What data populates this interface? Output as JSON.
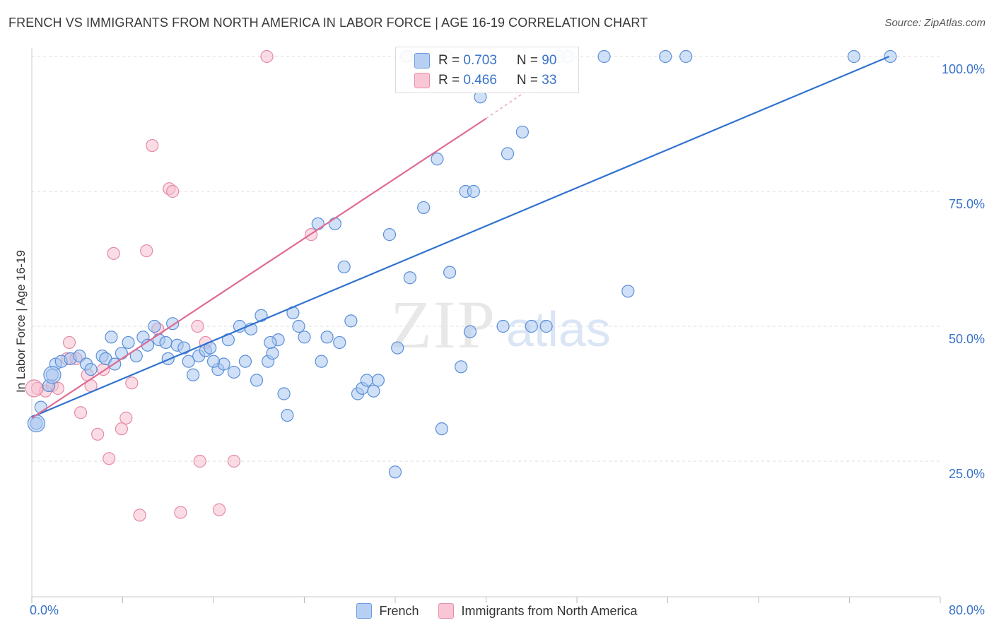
{
  "title": "FRENCH VS IMMIGRANTS FROM NORTH AMERICA IN LABOR FORCE | AGE 16-19 CORRELATION CHART",
  "source": "Source: ZipAtlas.com",
  "watermark": {
    "zip": "ZIP",
    "atlas": "atlas"
  },
  "legend_stats": {
    "french": {
      "r_label": "R = ",
      "r_value": "0.703",
      "n_label": "N = ",
      "n_value": "90"
    },
    "immigrants": {
      "r_label": "R = ",
      "r_value": "0.466",
      "n_label": "N = ",
      "n_value": "33"
    }
  },
  "legend": {
    "french": "French",
    "immigrants": "Immigrants from North America"
  },
  "colors": {
    "french_fill": "#a9c6ef",
    "french_stroke": "#5a8fd8",
    "french_line": "#2f72d0",
    "imm_fill": "#f6bfd0",
    "imm_stroke": "#e58aa7",
    "imm_line": "#e06a94",
    "axis_text": "#3a72c9",
    "grid": "#dddddd"
  },
  "chart_data": {
    "type": "scatter",
    "title": "FRENCH VS IMMIGRANTS FROM NORTH AMERICA IN LABOR FORCE | AGE 16-19 CORRELATION CHART",
    "xlabel": "",
    "ylabel": "In Labor Force | Age 16-19",
    "xlim": [
      0,
      80
    ],
    "ylim": [
      0,
      102
    ],
    "x_tick_labels": [
      {
        "value": 0,
        "label": "0.0%"
      },
      {
        "value": 80,
        "label": "80.0%"
      }
    ],
    "y_tick_labels": [
      {
        "value": 25,
        "label": "25.0%"
      },
      {
        "value": 50,
        "label": "50.0%"
      },
      {
        "value": 75,
        "label": "75.0%"
      },
      {
        "value": 100,
        "label": "100.0%"
      }
    ],
    "x_minor_ticks": [
      0,
      8,
      16,
      24,
      32,
      40,
      48,
      56,
      64,
      72,
      80
    ],
    "series": [
      {
        "name": "French",
        "trend": {
          "x": [
            0,
            75.5
          ],
          "y": [
            33.2,
            100
          ]
        },
        "points": [
          [
            0.4,
            32
          ],
          [
            0.8,
            35
          ],
          [
            1.5,
            39
          ],
          [
            1.8,
            41
          ],
          [
            2.1,
            43
          ],
          [
            2.6,
            43.5
          ],
          [
            3.4,
            44
          ],
          [
            4.2,
            44.5
          ],
          [
            4.8,
            43
          ],
          [
            5.2,
            42
          ],
          [
            6.2,
            44.5
          ],
          [
            6.5,
            44
          ],
          [
            7,
            48
          ],
          [
            7.3,
            43
          ],
          [
            7.9,
            45
          ],
          [
            8.5,
            47
          ],
          [
            9.2,
            44.5
          ],
          [
            9.8,
            48
          ],
          [
            10.2,
            46.5
          ],
          [
            10.8,
            50
          ],
          [
            11.2,
            47.5
          ],
          [
            11.8,
            47
          ],
          [
            12.4,
            50.5
          ],
          [
            12.8,
            46.5
          ],
          [
            13.4,
            46
          ],
          [
            13.8,
            43.5
          ],
          [
            14.2,
            41
          ],
          [
            14.7,
            44.5
          ],
          [
            15.3,
            45.5
          ],
          [
            15.7,
            46
          ],
          [
            16.4,
            42
          ],
          [
            16.9,
            43
          ],
          [
            17.3,
            47.5
          ],
          [
            17.8,
            41.5
          ],
          [
            18.3,
            50
          ],
          [
            18.8,
            43.5
          ],
          [
            19.3,
            49.5
          ],
          [
            19.8,
            40
          ],
          [
            20.2,
            52
          ],
          [
            20.8,
            43.5
          ],
          [
            21.2,
            45
          ],
          [
            21.7,
            47.5
          ],
          [
            22.2,
            37.5
          ],
          [
            22.5,
            33.5
          ],
          [
            23,
            52.5
          ],
          [
            23.5,
            50
          ],
          [
            24,
            48
          ],
          [
            25.2,
            69
          ],
          [
            25.5,
            43.5
          ],
          [
            26,
            48
          ],
          [
            26.7,
            69
          ],
          [
            27.1,
            47
          ],
          [
            27.5,
            61
          ],
          [
            28.1,
            51
          ],
          [
            28.7,
            37.5
          ],
          [
            29.1,
            38.5
          ],
          [
            29.5,
            40
          ],
          [
            30.1,
            38
          ],
          [
            30.5,
            40
          ],
          [
            31.5,
            67
          ],
          [
            32,
            23
          ],
          [
            32.2,
            46
          ],
          [
            33.3,
            59
          ],
          [
            34.5,
            72
          ],
          [
            35.7,
            81
          ],
          [
            36.1,
            31
          ],
          [
            36.8,
            60
          ],
          [
            37.8,
            42.5
          ],
          [
            38.2,
            75
          ],
          [
            38.6,
            49
          ],
          [
            38.9,
            75
          ],
          [
            39.5,
            92.5
          ],
          [
            41.5,
            50
          ],
          [
            41.9,
            82
          ],
          [
            43.2,
            86
          ],
          [
            45.3,
            50
          ],
          [
            46.4,
            100
          ],
          [
            47.2,
            100
          ],
          [
            50.4,
            100
          ],
          [
            52.5,
            56.5
          ],
          [
            55.8,
            100
          ],
          [
            57.6,
            100
          ],
          [
            72.4,
            100
          ],
          [
            75.6,
            100
          ],
          [
            33,
            100
          ],
          [
            36.5,
            100
          ],
          [
            44,
            50
          ],
          [
            16,
            43.5
          ],
          [
            21,
            47
          ],
          [
            12,
            44
          ]
        ],
        "big_points": [
          [
            1.8,
            41
          ],
          [
            0.4,
            32
          ]
        ]
      },
      {
        "name": "Immigrants from North America",
        "trend": {
          "x": [
            0,
            40
          ],
          "y": [
            33,
            88.5
          ],
          "dash_to": {
            "x": 48,
            "y": 100
          }
        },
        "points": [
          [
            0.5,
            38.5
          ],
          [
            1.2,
            38
          ],
          [
            1.8,
            39
          ],
          [
            2.3,
            38.5
          ],
          [
            3.1,
            44
          ],
          [
            3.3,
            47
          ],
          [
            3.9,
            44
          ],
          [
            4.3,
            34
          ],
          [
            4.9,
            41
          ],
          [
            5.2,
            39
          ],
          [
            5.8,
            30
          ],
          [
            6.3,
            42
          ],
          [
            6.8,
            25.5
          ],
          [
            7.2,
            63.5
          ],
          [
            7.9,
            31
          ],
          [
            8.3,
            33
          ],
          [
            8.8,
            39.5
          ],
          [
            9.5,
            15
          ],
          [
            10.1,
            64
          ],
          [
            10.6,
            83.5
          ],
          [
            11.1,
            49.5
          ],
          [
            12.1,
            75.5
          ],
          [
            12.4,
            75
          ],
          [
            13.1,
            15.5
          ],
          [
            14.6,
            50
          ],
          [
            14.8,
            25
          ],
          [
            15.3,
            47
          ],
          [
            16.5,
            16
          ],
          [
            17.8,
            25
          ],
          [
            20.7,
            100
          ],
          [
            24.6,
            67
          ],
          [
            33.1,
            100
          ]
        ],
        "big_points": [
          [
            0.2,
            38.5
          ]
        ]
      }
    ]
  }
}
